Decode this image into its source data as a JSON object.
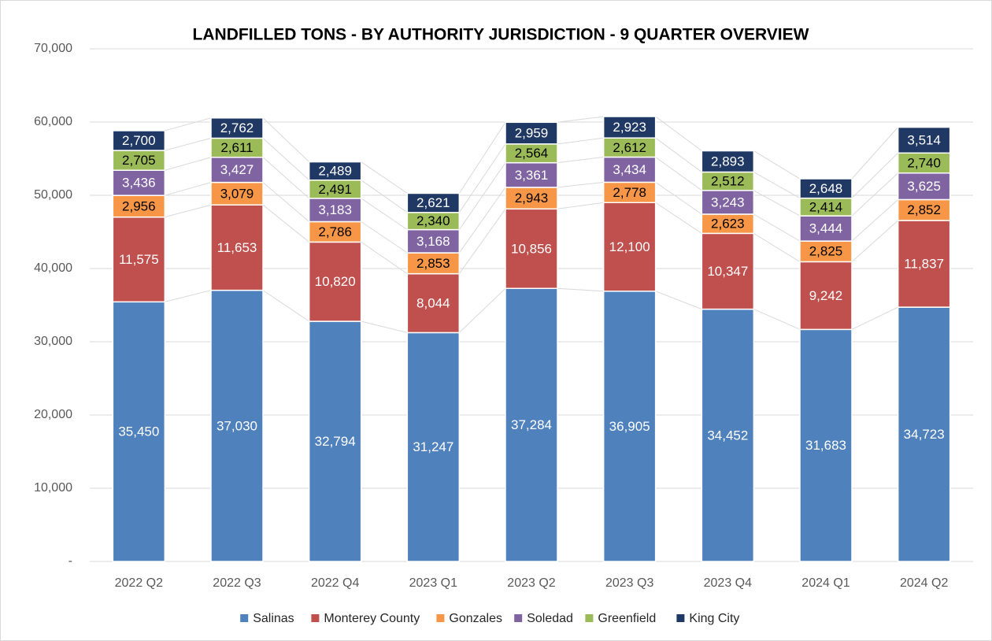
{
  "chart_data": {
    "type": "stacked_bar",
    "title": "LANDFILLED TONS - BY AUTHORITY JURISDICTION - 9 QUARTER OVERVIEW",
    "categories": [
      "2022 Q2",
      "2022 Q3",
      "2022 Q4",
      "2023 Q1",
      "2023 Q2",
      "2023 Q3",
      "2023 Q4",
      "2024 Q1",
      "2024 Q2"
    ],
    "series": [
      {
        "name": "Salinas",
        "color": "#4f81bd",
        "values": [
          35450,
          37030,
          32794,
          31247,
          37284,
          36905,
          34452,
          31683,
          34723
        ],
        "value_labels": [
          "35,450",
          "37,030",
          "32,794",
          "31,247",
          "37,284",
          "36,905",
          "34,452",
          "31,683",
          "34,723"
        ]
      },
      {
        "name": "Monterey County",
        "color": "#c0504d",
        "values": [
          11575,
          11653,
          10820,
          8044,
          10856,
          12100,
          10347,
          9242,
          11837
        ],
        "value_labels": [
          "11,575",
          "11,653",
          "10,820",
          "8,044",
          "10,856",
          "12,100",
          "10,347",
          "9,242",
          "11,837"
        ]
      },
      {
        "name": "Gonzales",
        "color": "#f79646",
        "values": [
          2956,
          3079,
          2786,
          2853,
          2943,
          2778,
          2623,
          2825,
          2852
        ],
        "value_labels": [
          "2,956",
          "3,079",
          "2,786",
          "2,853",
          "2,943",
          "2,778",
          "2,623",
          "2,825",
          "2,852"
        ]
      },
      {
        "name": "Soledad",
        "color": "#8064a2",
        "values": [
          3436,
          3427,
          3183,
          3168,
          3361,
          3434,
          3243,
          3444,
          3625
        ],
        "value_labels": [
          "3,436",
          "3,427",
          "3,183",
          "3,168",
          "3,361",
          "3,434",
          "3,243",
          "3,444",
          "3,625"
        ]
      },
      {
        "name": "Greenfield",
        "color": "#9bbb59",
        "values": [
          2705,
          2611,
          2491,
          2340,
          2564,
          2612,
          2512,
          2414,
          2740
        ],
        "value_labels": [
          "2,705",
          "2,611",
          "2,491",
          "2,340",
          "2,564",
          "2,612",
          "2,512",
          "2,414",
          "2,740"
        ]
      },
      {
        "name": "King City",
        "color": "#1f3864",
        "values": [
          2700,
          2762,
          2489,
          2621,
          2959,
          2923,
          2893,
          2648,
          3514
        ],
        "value_labels": [
          "2,700",
          "2,762",
          "2,489",
          "2,621",
          "2,959",
          "2,923",
          "2,893",
          "2,648",
          "3,514"
        ]
      }
    ],
    "ylim": [
      0,
      70000
    ],
    "yticks": [
      {
        "value": 0,
        "label": "-"
      },
      {
        "value": 10000,
        "label": "10,000"
      },
      {
        "value": 20000,
        "label": "20,000"
      },
      {
        "value": 30000,
        "label": "30,000"
      },
      {
        "value": 40000,
        "label": "40,000"
      },
      {
        "value": 50000,
        "label": "50,000"
      },
      {
        "value": 60000,
        "label": "60,000"
      },
      {
        "value": 70000,
        "label": "70,000"
      }
    ],
    "grid": true,
    "legend": "bottom"
  }
}
